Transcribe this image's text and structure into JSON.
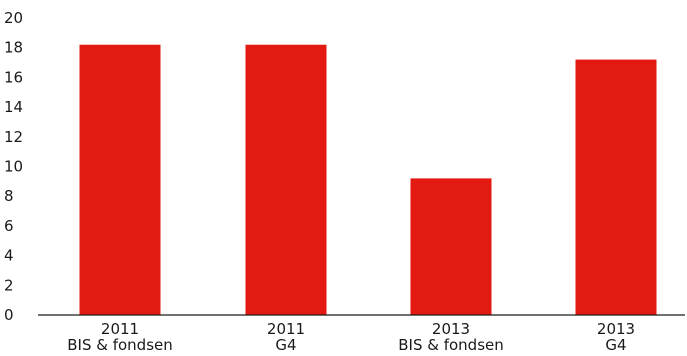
{
  "chart_data": {
    "type": "bar",
    "categories": [
      [
        "2011",
        "BIS & fondsen"
      ],
      [
        "2011",
        "G4"
      ],
      [
        "2013",
        "BIS & fondsen"
      ],
      [
        "2013",
        "G4"
      ]
    ],
    "values": [
      18.2,
      18.2,
      9.2,
      17.2
    ],
    "yticks": [
      "0",
      "2",
      "4",
      "6",
      "8",
      "10",
      "12",
      "14",
      "16",
      "18",
      "20"
    ],
    "ylim": [
      0,
      20
    ],
    "grid": false,
    "legend": "none",
    "colors": {
      "bar": "#e31a12",
      "axis": "#1a1a1a",
      "text": "#1a1a1a"
    }
  }
}
